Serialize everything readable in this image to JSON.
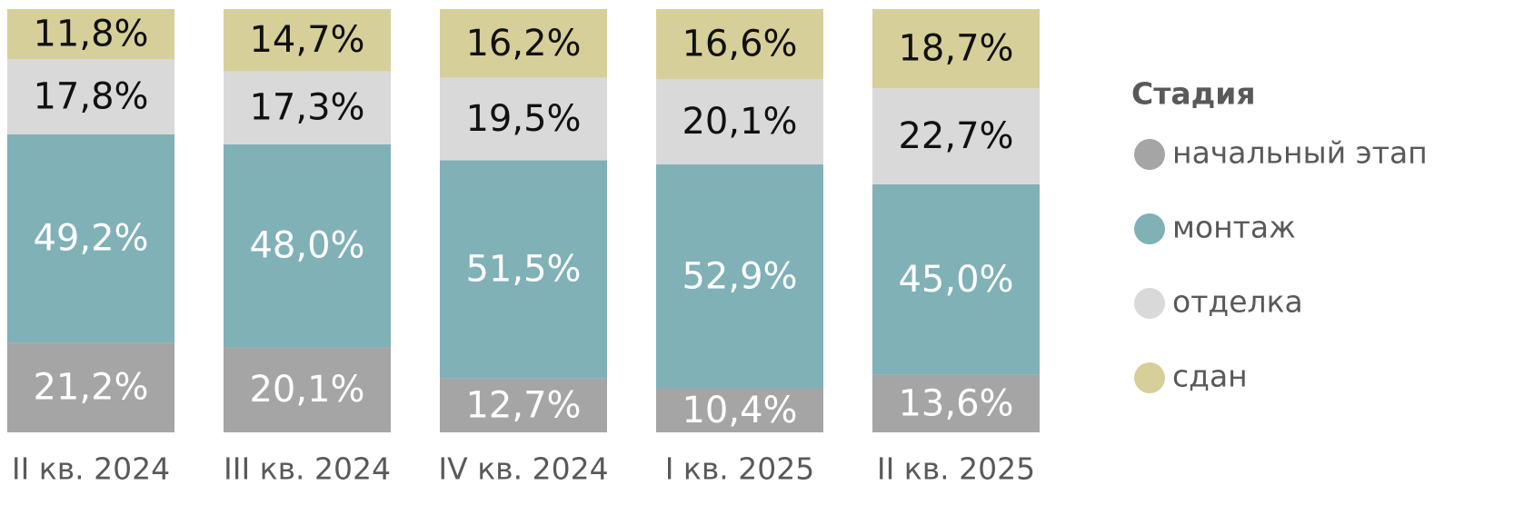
{
  "chart_data": {
    "type": "stacked-bar",
    "categories": [
      "II кв. 2024",
      "III кв. 2024",
      "IV кв. 2024",
      "I кв. 2025",
      "II кв. 2025"
    ],
    "legend_title": "Стадия",
    "legend_position": "right",
    "series": [
      {
        "name": "начальный этап",
        "color": "#a5a5a5",
        "values": [
          21.2,
          20.1,
          12.7,
          10.4,
          13.6
        ],
        "value_labels": [
          "21,2%",
          "20,1%",
          "12,7%",
          "10,4%",
          "13,6%"
        ]
      },
      {
        "name": "монтаж",
        "color": "#7fb1b7",
        "values": [
          49.2,
          48.0,
          51.5,
          52.9,
          45.0
        ],
        "value_labels": [
          "49,2%",
          "48,0%",
          "51,5%",
          "52,9%",
          "45,0%"
        ]
      },
      {
        "name": "отделка",
        "color": "#d9d9d9",
        "values": [
          17.8,
          17.3,
          19.5,
          20.1,
          22.7
        ],
        "value_labels": [
          "17,8%",
          "17,3%",
          "19,5%",
          "20,1%",
          "22,7%"
        ]
      },
      {
        "name": "сдан",
        "color": "#d7cf9a",
        "values": [
          11.8,
          14.7,
          16.2,
          16.6,
          18.7
        ],
        "value_labels": [
          "11,8%",
          "14,7%",
          "16,2%",
          "16,6%",
          "18,7%"
        ]
      }
    ]
  }
}
